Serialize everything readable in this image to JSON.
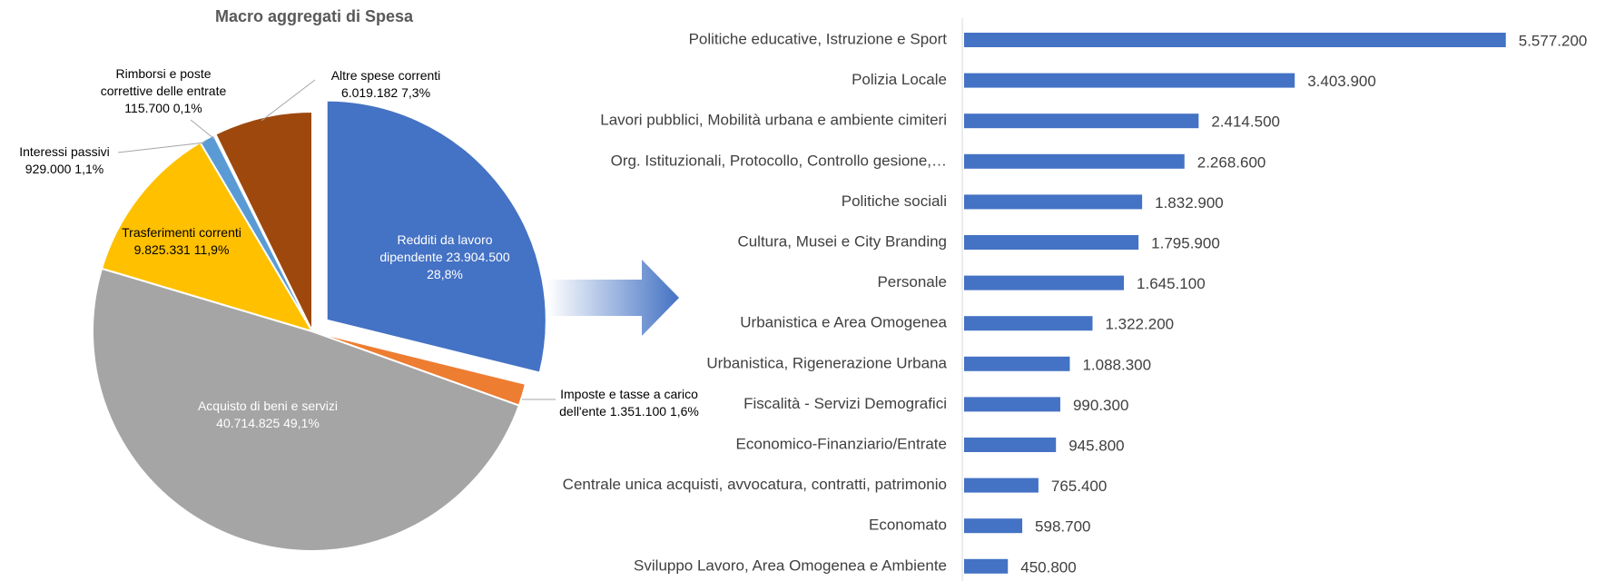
{
  "chart_data": [
    {
      "type": "pie",
      "title": "Macro aggregati di Spesa",
      "categories": [
        "Redditi da lavoro dipendente",
        "Imposte e tasse a carico dell'ente",
        "Acquisto di beni e servizi",
        "Trasferimenti correnti",
        "Interessi passivi",
        "Rimborsi e poste correttive delle entrate",
        "Altre spese correnti"
      ],
      "values": [
        23904500,
        1351100,
        40714825,
        9825331,
        929000,
        115700,
        6019182
      ],
      "value_labels": [
        "23.904.500",
        "1.351.100",
        "40.714.825",
        "9.825.331",
        "929.000",
        "115.700",
        "6.019.182"
      ],
      "percentages": [
        28.8,
        1.6,
        49.1,
        11.9,
        1.1,
        0.1,
        7.3
      ],
      "percentage_labels": [
        "28,8%",
        "1,6%",
        "49,1%",
        "11,9%",
        "1,1%",
        "0,1%",
        "7,3%"
      ],
      "colors": [
        "#4472c4",
        "#ed7d31",
        "#a5a5a5",
        "#ffc000",
        "#5b9bd5",
        "#70ad47",
        "#9e480e"
      ]
    },
    {
      "type": "hbar",
      "categories": [
        "Politiche educative, Istruzione e Sport",
        "Polizia Locale",
        "Lavori pubblici, Mobilità urbana e ambiente cimiteri",
        "Org. Istituzionali, Protocollo, Controllo gesione,…",
        "Politiche sociali",
        "Cultura, Musei e City Branding",
        "Personale",
        "Urbanistica e Area Omogenea",
        "Urbanistica, Rigenerazione Urbana",
        "Fiscalità - Servizi Demografici",
        "Economico-Finanziario/Entrate",
        "Centrale unica acquisti, avvocatura,  contratti, patrimonio",
        "Economato",
        "Sviluppo Lavoro, Area Omogenea e Ambiente"
      ],
      "values": [
        5577200,
        3403900,
        2414500,
        2268600,
        1832900,
        1795900,
        1645100,
        1322200,
        1088300,
        990300,
        945800,
        765400,
        598700,
        450800
      ],
      "value_labels": [
        "5.577.200",
        "3.403.900",
        "2.414.500",
        "2.268.600",
        "1.832.900",
        "1.795.900",
        "1.645.100",
        "1.322.200",
        "1.088.300",
        "990.300",
        "945.800",
        "765.400",
        "598.700",
        "450.800"
      ],
      "color": "#4472c4",
      "xlim": [
        0,
        6000000
      ]
    }
  ]
}
